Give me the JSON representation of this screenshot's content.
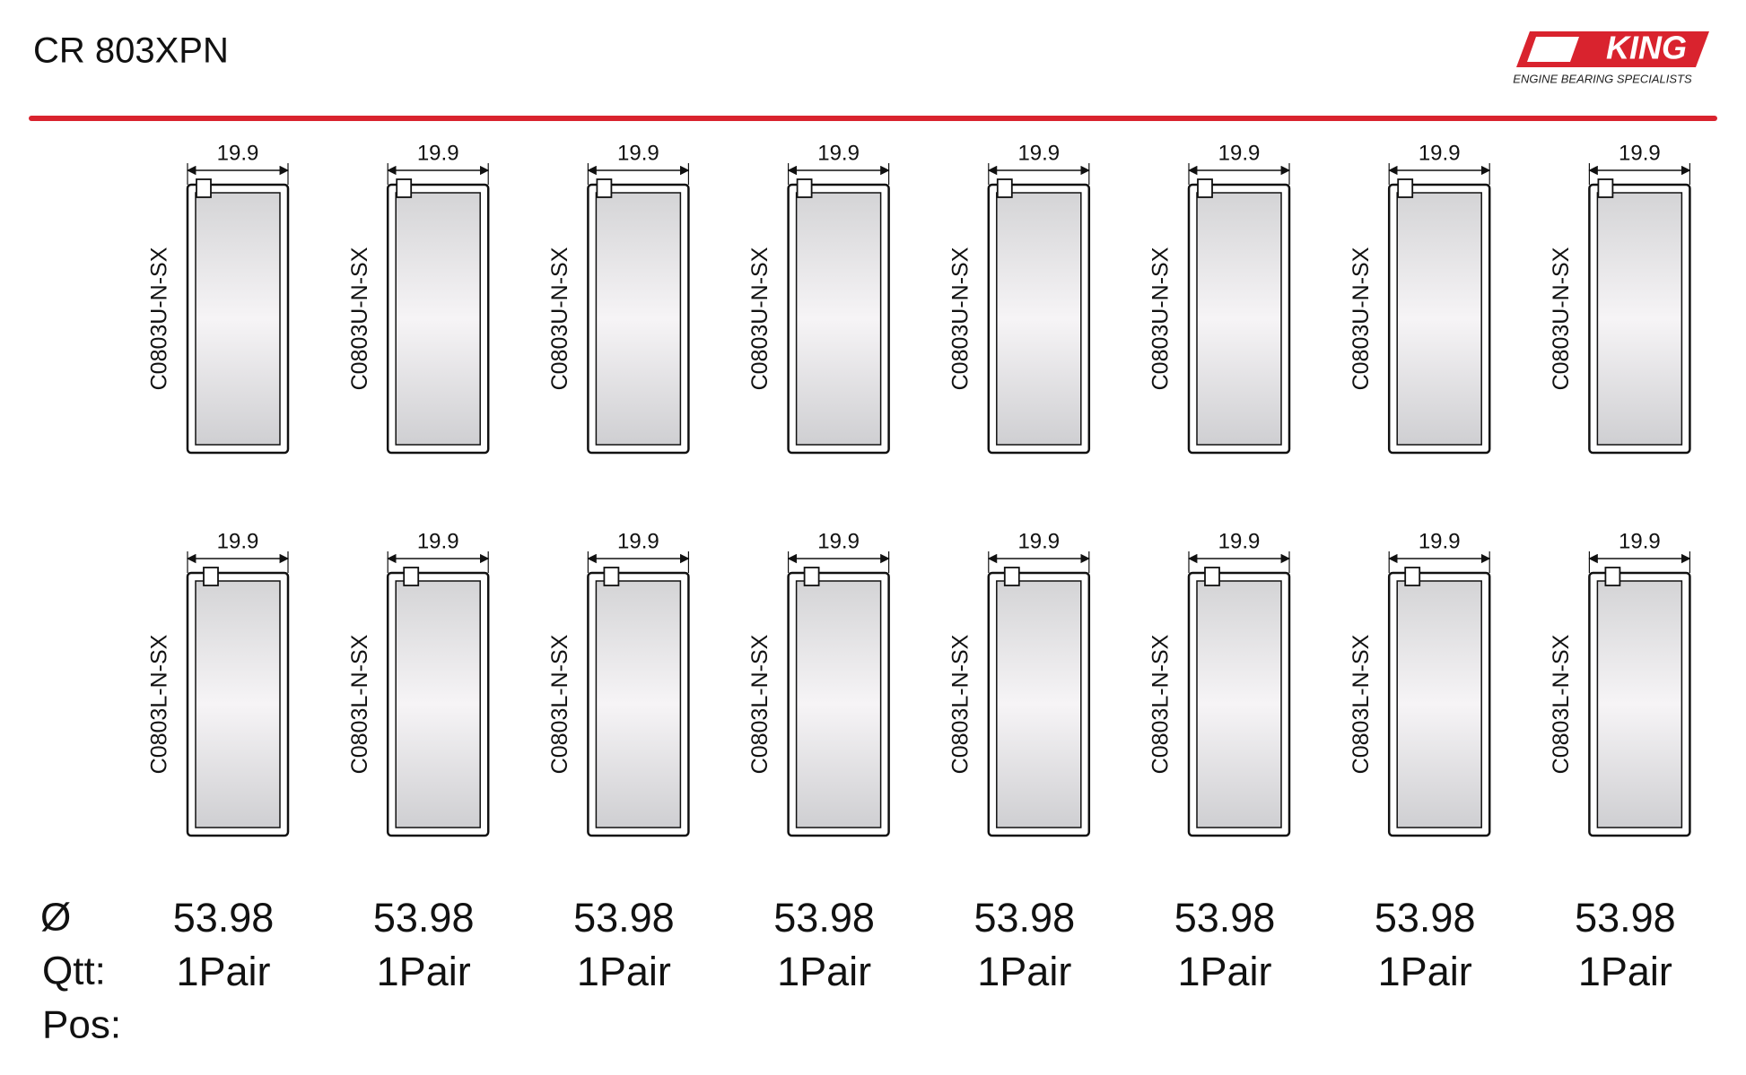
{
  "header": {
    "title": "CR 803XPN"
  },
  "logo": {
    "brand": "KING",
    "tagline": "ENGINE BEARING SPECIALISTS"
  },
  "row_labels": {
    "diameter": "Ø",
    "quantity": "Qtt:",
    "position": "Pos:"
  },
  "columns": [
    {
      "upper": {
        "part": "C0803U-N-SX",
        "width": "19.9"
      },
      "lower": {
        "part": "C0803L-N-SX",
        "width": "19.9"
      },
      "diameter": "53.98",
      "quantity": "1Pair"
    },
    {
      "upper": {
        "part": "C0803U-N-SX",
        "width": "19.9"
      },
      "lower": {
        "part": "C0803L-N-SX",
        "width": "19.9"
      },
      "diameter": "53.98",
      "quantity": "1Pair"
    },
    {
      "upper": {
        "part": "C0803U-N-SX",
        "width": "19.9"
      },
      "lower": {
        "part": "C0803L-N-SX",
        "width": "19.9"
      },
      "diameter": "53.98",
      "quantity": "1Pair"
    },
    {
      "upper": {
        "part": "C0803U-N-SX",
        "width": "19.9"
      },
      "lower": {
        "part": "C0803L-N-SX",
        "width": "19.9"
      },
      "diameter": "53.98",
      "quantity": "1Pair"
    },
    {
      "upper": {
        "part": "C0803U-N-SX",
        "width": "19.9"
      },
      "lower": {
        "part": "C0803L-N-SX",
        "width": "19.9"
      },
      "diameter": "53.98",
      "quantity": "1Pair"
    },
    {
      "upper": {
        "part": "C0803U-N-SX",
        "width": "19.9"
      },
      "lower": {
        "part": "C0803L-N-SX",
        "width": "19.9"
      },
      "diameter": "53.98",
      "quantity": "1Pair"
    },
    {
      "upper": {
        "part": "C0803U-N-SX",
        "width": "19.9"
      },
      "lower": {
        "part": "C0803L-N-SX",
        "width": "19.9"
      },
      "diameter": "53.98",
      "quantity": "1Pair"
    },
    {
      "upper": {
        "part": "C0803U-N-SX",
        "width": "19.9"
      },
      "lower": {
        "part": "C0803L-N-SX",
        "width": "19.9"
      },
      "diameter": "53.98",
      "quantity": "1Pair"
    }
  ]
}
